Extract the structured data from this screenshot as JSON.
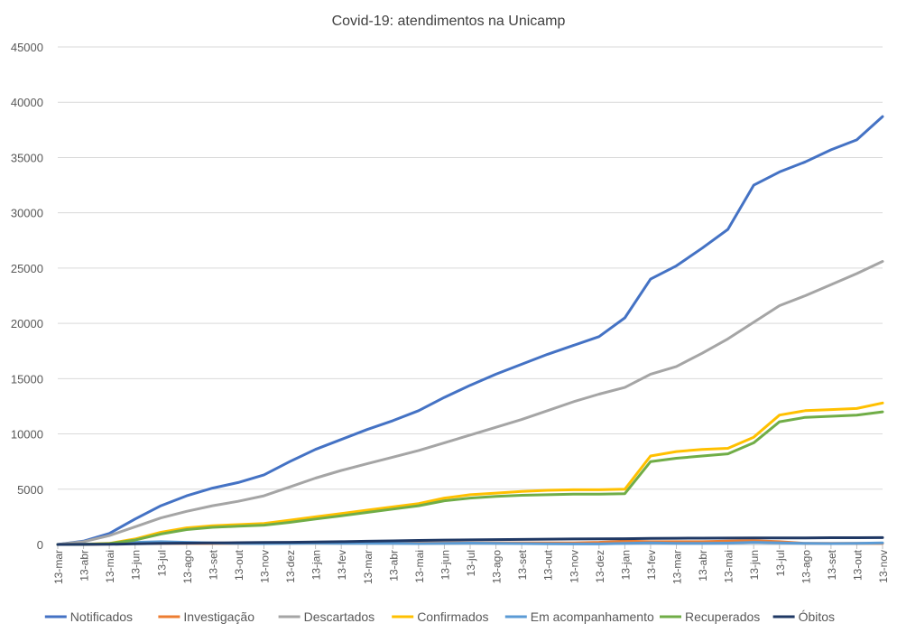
{
  "chart_data": {
    "type": "line",
    "title": "Covid-19: atendimentos  na Unicamp",
    "xlabel": "",
    "ylabel": "",
    "ylim": [
      0,
      45000
    ],
    "yticks": [
      0,
      5000,
      10000,
      15000,
      20000,
      25000,
      30000,
      35000,
      40000,
      45000
    ],
    "grid": "horizontal",
    "legend_position": "bottom",
    "x_tick_labels": [
      "13-mar",
      "13-abr",
      "13-mai",
      "13-jun",
      "13-jul",
      "13-ago",
      "13-set",
      "13-out",
      "13-nov",
      "13-dez",
      "13-jan",
      "13-fev",
      "13-mar",
      "13-abr",
      "13-mai",
      "13-jun",
      "13-jul",
      "13-ago",
      "13-set",
      "13-out",
      "13-nov",
      "13-dez",
      "13-jan",
      "13-fev",
      "13-mar",
      "13-abr",
      "13-mai",
      "13-jun",
      "13-jul",
      "13-ago",
      "13-set",
      "13-out",
      "13-nov"
    ],
    "x": [
      "13-mar",
      "13-abr",
      "13-mai",
      "13-jun",
      "13-jul",
      "13-ago",
      "13-set",
      "13-out",
      "13-nov",
      "13-dez",
      "13-jan",
      "13-fev",
      "13-mar",
      "13-abr",
      "13-mai",
      "13-jun",
      "13-jul",
      "13-ago",
      "13-set",
      "13-out",
      "13-nov",
      "13-dez",
      "13-jan",
      "13-fev",
      "13-mar",
      "13-abr",
      "13-mai",
      "13-jun",
      "13-jul",
      "13-ago",
      "13-set",
      "13-out",
      "13-nov"
    ],
    "series": [
      {
        "name": "Notificados",
        "color": "#4472C4",
        "values": [
          0,
          300,
          1000,
          2300,
          3500,
          4400,
          5100,
          5600,
          6300,
          7500,
          8600,
          9500,
          10400,
          11200,
          12100,
          13300,
          14400,
          15400,
          16300,
          17200,
          18000,
          18800,
          20500,
          24000,
          25200,
          26800,
          28500,
          32500,
          33700,
          34600,
          35700,
          36600,
          38700
        ]
      },
      {
        "name": "Investigação",
        "color": "#ED7D31",
        "values": [
          0,
          0,
          50,
          100,
          100,
          100,
          100,
          100,
          120,
          150,
          150,
          150,
          150,
          150,
          150,
          150,
          150,
          150,
          150,
          150,
          150,
          200,
          300,
          250,
          250,
          250,
          300,
          350,
          250,
          100,
          100,
          100,
          100
        ]
      },
      {
        "name": "Descartados",
        "color": "#A5A5A5",
        "values": [
          0,
          250,
          800,
          1600,
          2400,
          3000,
          3500,
          3900,
          4400,
          5200,
          6000,
          6700,
          7300,
          7900,
          8500,
          9200,
          9900,
          10600,
          11300,
          12100,
          12900,
          13600,
          14200,
          15400,
          16100,
          17300,
          18600,
          20100,
          21600,
          22500,
          23500,
          24500,
          25600
        ]
      },
      {
        "name": "Confirmados",
        "color": "#FFC000",
        "values": [
          0,
          20,
          100,
          500,
          1100,
          1500,
          1700,
          1800,
          1900,
          2200,
          2500,
          2800,
          3100,
          3400,
          3700,
          4200,
          4500,
          4650,
          4800,
          4900,
          4950,
          4950,
          5000,
          8000,
          8400,
          8600,
          8700,
          9700,
          11700,
          12100,
          12200,
          12300,
          12800
        ]
      },
      {
        "name": "Em acompanhamento",
        "color": "#5B9BD5",
        "values": [
          0,
          20,
          50,
          200,
          250,
          200,
          150,
          100,
          80,
          100,
          120,
          100,
          100,
          100,
          80,
          100,
          120,
          100,
          80,
          60,
          50,
          50,
          100,
          150,
          100,
          100,
          120,
          200,
          150,
          100,
          80,
          100,
          150
        ]
      },
      {
        "name": "Recuperados",
        "color": "#70AD47",
        "values": [
          0,
          10,
          80,
          400,
          950,
          1350,
          1550,
          1650,
          1750,
          2000,
          2300,
          2600,
          2900,
          3200,
          3500,
          3950,
          4200,
          4350,
          4450,
          4500,
          4550,
          4550,
          4600,
          7500,
          7800,
          8000,
          8200,
          9200,
          11100,
          11500,
          11600,
          11700,
          12000
        ]
      },
      {
        "name": "Óbitos",
        "color": "#1F3864",
        "values": [
          0,
          5,
          20,
          60,
          100,
          120,
          140,
          160,
          180,
          200,
          220,
          250,
          290,
          330,
          370,
          400,
          420,
          440,
          460,
          480,
          500,
          510,
          520,
          550,
          560,
          570,
          580,
          590,
          600,
          600,
          610,
          610,
          620
        ]
      }
    ]
  }
}
